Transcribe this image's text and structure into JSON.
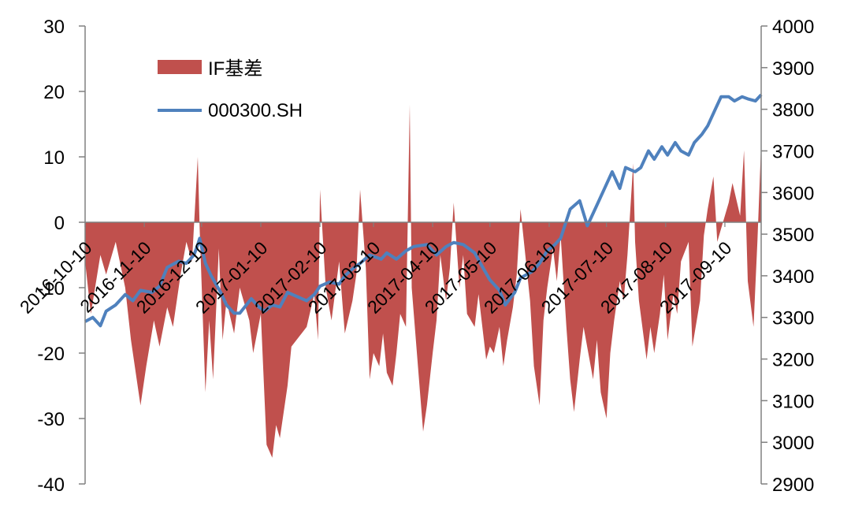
{
  "chart_data": {
    "type": "area+line",
    "x_tick_labels": [
      "2016-10-10",
      "2016-11-10",
      "2016-12-10",
      "2017-01-10",
      "2017-02-10",
      "2017-03-10",
      "2017-04-10",
      "2017-05-10",
      "2017-06-10",
      "2017-07-10",
      "2017-08-10",
      "2017-09-10"
    ],
    "y_left": {
      "ylim": [
        -40,
        30
      ],
      "ticks": [
        -40,
        -30,
        -20,
        -10,
        0,
        10,
        20,
        30
      ]
    },
    "y_right": {
      "ylim": [
        2900,
        4000
      ],
      "ticks": [
        2900,
        3000,
        3100,
        3200,
        3300,
        3400,
        3500,
        3600,
        3700,
        3800,
        3900,
        4000
      ]
    },
    "legend": {
      "position": "top-left"
    },
    "series": [
      {
        "name": "IF基差",
        "type": "area",
        "axis": "left",
        "color": "#C0504D",
        "points": [
          [
            "2016-10-10",
            -6
          ],
          [
            "2016-10-13",
            -14
          ],
          [
            "2016-10-18",
            -5
          ],
          [
            "2016-10-21",
            -8
          ],
          [
            "2016-10-26",
            -3
          ],
          [
            "2016-10-31",
            -10
          ],
          [
            "2016-11-03",
            -18
          ],
          [
            "2016-11-08",
            -28
          ],
          [
            "2016-11-11",
            -22
          ],
          [
            "2016-11-15",
            -15
          ],
          [
            "2016-11-18",
            -19
          ],
          [
            "2016-11-22",
            -13
          ],
          [
            "2016-11-25",
            -16
          ],
          [
            "2016-11-29",
            -8
          ],
          [
            "2016-12-02",
            -3
          ],
          [
            "2016-12-05",
            -6
          ],
          [
            "2016-12-08",
            10
          ],
          [
            "2016-12-09",
            -1
          ],
          [
            "2016-12-12",
            -26
          ],
          [
            "2016-12-14",
            -15
          ],
          [
            "2016-12-16",
            -24
          ],
          [
            "2016-12-19",
            -4
          ],
          [
            "2016-12-21",
            -18
          ],
          [
            "2016-12-23",
            -12
          ],
          [
            "2016-12-27",
            -17
          ],
          [
            "2016-12-30",
            -10
          ],
          [
            "2017-01-04",
            -15
          ],
          [
            "2017-01-06",
            -20
          ],
          [
            "2017-01-10",
            -14
          ],
          [
            "2017-01-13",
            -34
          ],
          [
            "2017-01-16",
            -36
          ],
          [
            "2017-01-18",
            -31
          ],
          [
            "2017-01-20",
            -33
          ],
          [
            "2017-01-24",
            -25
          ],
          [
            "2017-01-26",
            -19
          ],
          [
            "2017-02-03",
            -16
          ],
          [
            "2017-02-07",
            -11
          ],
          [
            "2017-02-09",
            -18
          ],
          [
            "2017-02-10",
            5
          ],
          [
            "2017-02-13",
            -10
          ],
          [
            "2017-02-16",
            -15
          ],
          [
            "2017-02-20",
            -6
          ],
          [
            "2017-02-23",
            -17
          ],
          [
            "2017-02-27",
            -12
          ],
          [
            "2017-03-01",
            -8
          ],
          [
            "2017-03-03",
            5
          ],
          [
            "2017-03-06",
            -7
          ],
          [
            "2017-03-08",
            -24
          ],
          [
            "2017-03-10",
            -20
          ],
          [
            "2017-03-13",
            -22
          ],
          [
            "2017-03-15",
            -17
          ],
          [
            "2017-03-17",
            -23
          ],
          [
            "2017-03-20",
            -25
          ],
          [
            "2017-03-22",
            -20
          ],
          [
            "2017-03-24",
            -14
          ],
          [
            "2017-03-27",
            -16
          ],
          [
            "2017-03-29",
            18
          ],
          [
            "2017-03-30",
            -10
          ],
          [
            "2017-04-05",
            -32
          ],
          [
            "2017-04-07",
            -28
          ],
          [
            "2017-04-10",
            -20
          ],
          [
            "2017-04-12",
            -15
          ],
          [
            "2017-04-14",
            -5
          ],
          [
            "2017-04-17",
            -12
          ],
          [
            "2017-04-19",
            -7
          ],
          [
            "2017-04-21",
            3
          ],
          [
            "2017-04-24",
            -10
          ],
          [
            "2017-04-26",
            -5
          ],
          [
            "2017-04-28",
            -14
          ],
          [
            "2017-05-02",
            -16
          ],
          [
            "2017-05-04",
            -11
          ],
          [
            "2017-05-08",
            -21
          ],
          [
            "2017-05-10",
            -19
          ],
          [
            "2017-05-12",
            -20
          ],
          [
            "2017-05-15",
            -16
          ],
          [
            "2017-05-17",
            -22
          ],
          [
            "2017-05-19",
            -18
          ],
          [
            "2017-05-22",
            -13
          ],
          [
            "2017-05-24",
            -8
          ],
          [
            "2017-05-26",
            2
          ],
          [
            "2017-05-31",
            -12
          ],
          [
            "2017-06-02",
            -22
          ],
          [
            "2017-06-05",
            -28
          ],
          [
            "2017-06-07",
            -15
          ],
          [
            "2017-06-09",
            -10
          ],
          [
            "2017-06-12",
            -4
          ],
          [
            "2017-06-14",
            -9
          ],
          [
            "2017-06-16",
            -2
          ],
          [
            "2017-06-19",
            -16
          ],
          [
            "2017-06-21",
            -24
          ],
          [
            "2017-06-23",
            -29
          ],
          [
            "2017-06-26",
            -21
          ],
          [
            "2017-06-28",
            -16
          ],
          [
            "2017-07-03",
            -24
          ],
          [
            "2017-07-05",
            -18
          ],
          [
            "2017-07-07",
            -26
          ],
          [
            "2017-07-10",
            -30
          ],
          [
            "2017-07-12",
            -20
          ],
          [
            "2017-07-14",
            -15
          ],
          [
            "2017-07-17",
            -9
          ],
          [
            "2017-07-19",
            -12
          ],
          [
            "2017-07-21",
            -5
          ],
          [
            "2017-07-24",
            9
          ],
          [
            "2017-07-25",
            -3
          ],
          [
            "2017-07-27",
            -12
          ],
          [
            "2017-07-31",
            -21
          ],
          [
            "2017-08-02",
            -16
          ],
          [
            "2017-08-04",
            -20
          ],
          [
            "2017-08-07",
            -14
          ],
          [
            "2017-08-09",
            -8
          ],
          [
            "2017-08-11",
            -18
          ],
          [
            "2017-08-14",
            -11
          ],
          [
            "2017-08-16",
            -14
          ],
          [
            "2017-08-18",
            -6
          ],
          [
            "2017-08-22",
            -3
          ],
          [
            "2017-08-24",
            -19
          ],
          [
            "2017-08-28",
            -12
          ],
          [
            "2017-08-30",
            -2
          ],
          [
            "2017-09-01",
            2
          ],
          [
            "2017-09-04",
            7
          ],
          [
            "2017-09-06",
            -3
          ],
          [
            "2017-09-08",
            -1
          ],
          [
            "2017-09-12",
            3
          ],
          [
            "2017-09-14",
            6
          ],
          [
            "2017-09-18",
            1
          ],
          [
            "2017-09-20",
            11
          ],
          [
            "2017-09-22",
            -9
          ],
          [
            "2017-09-25",
            -16
          ],
          [
            "2017-09-27",
            -3
          ],
          [
            "2017-09-29",
            12
          ]
        ]
      },
      {
        "name": "000300.SH",
        "type": "line",
        "axis": "right",
        "color": "#4F81BD",
        "points": [
          [
            "2016-10-10",
            3290
          ],
          [
            "2016-10-14",
            3300
          ],
          [
            "2016-10-18",
            3280
          ],
          [
            "2016-10-21",
            3315
          ],
          [
            "2016-10-26",
            3330
          ],
          [
            "2016-10-31",
            3355
          ],
          [
            "2016-11-04",
            3340
          ],
          [
            "2016-11-08",
            3365
          ],
          [
            "2016-11-14",
            3360
          ],
          [
            "2016-11-18",
            3375
          ],
          [
            "2016-11-22",
            3420
          ],
          [
            "2016-11-28",
            3435
          ],
          [
            "2016-12-02",
            3430
          ],
          [
            "2016-12-06",
            3450
          ],
          [
            "2016-12-08",
            3475
          ],
          [
            "2016-12-09",
            3490
          ],
          [
            "2016-12-12",
            3430
          ],
          [
            "2016-12-15",
            3400
          ],
          [
            "2016-12-20",
            3360
          ],
          [
            "2016-12-23",
            3330
          ],
          [
            "2016-12-27",
            3310
          ],
          [
            "2016-12-30",
            3310
          ],
          [
            "2017-01-05",
            3345
          ],
          [
            "2017-01-09",
            3325
          ],
          [
            "2017-01-12",
            3315
          ],
          [
            "2017-01-16",
            3330
          ],
          [
            "2017-01-20",
            3325
          ],
          [
            "2017-01-24",
            3360
          ],
          [
            "2017-02-03",
            3340
          ],
          [
            "2017-02-07",
            3355
          ],
          [
            "2017-02-10",
            3375
          ],
          [
            "2017-02-15",
            3385
          ],
          [
            "2017-02-20",
            3380
          ],
          [
            "2017-02-23",
            3400
          ],
          [
            "2017-02-28",
            3420
          ],
          [
            "2017-03-03",
            3430
          ],
          [
            "2017-03-08",
            3450
          ],
          [
            "2017-03-14",
            3440
          ],
          [
            "2017-03-17",
            3455
          ],
          [
            "2017-03-22",
            3440
          ],
          [
            "2017-03-27",
            3460
          ],
          [
            "2017-03-31",
            3470
          ],
          [
            "2017-04-07",
            3475
          ],
          [
            "2017-04-12",
            3450
          ],
          [
            "2017-04-17",
            3470
          ],
          [
            "2017-04-21",
            3480
          ],
          [
            "2017-04-26",
            3475
          ],
          [
            "2017-05-02",
            3455
          ],
          [
            "2017-05-05",
            3430
          ],
          [
            "2017-05-10",
            3390
          ],
          [
            "2017-05-15",
            3365
          ],
          [
            "2017-05-18",
            3330
          ],
          [
            "2017-05-23",
            3360
          ],
          [
            "2017-05-26",
            3395
          ],
          [
            "2017-06-01",
            3410
          ],
          [
            "2017-06-05",
            3430
          ],
          [
            "2017-06-09",
            3460
          ],
          [
            "2017-06-13",
            3475
          ],
          [
            "2017-06-16",
            3490
          ],
          [
            "2017-06-21",
            3560
          ],
          [
            "2017-06-26",
            3580
          ],
          [
            "2017-06-30",
            3520
          ],
          [
            "2017-07-05",
            3570
          ],
          [
            "2017-07-10",
            3620
          ],
          [
            "2017-07-13",
            3650
          ],
          [
            "2017-07-17",
            3610
          ],
          [
            "2017-07-20",
            3660
          ],
          [
            "2017-07-25",
            3650
          ],
          [
            "2017-07-28",
            3660
          ],
          [
            "2017-08-01",
            3700
          ],
          [
            "2017-08-04",
            3680
          ],
          [
            "2017-08-08",
            3710
          ],
          [
            "2017-08-11",
            3690
          ],
          [
            "2017-08-15",
            3720
          ],
          [
            "2017-08-18",
            3700
          ],
          [
            "2017-08-22",
            3690
          ],
          [
            "2017-08-25",
            3720
          ],
          [
            "2017-08-29",
            3740
          ],
          [
            "2017-09-01",
            3760
          ],
          [
            "2017-09-05",
            3800
          ],
          [
            "2017-09-08",
            3830
          ],
          [
            "2017-09-12",
            3830
          ],
          [
            "2017-09-15",
            3820
          ],
          [
            "2017-09-19",
            3830
          ],
          [
            "2017-09-22",
            3825
          ],
          [
            "2017-09-26",
            3820
          ],
          [
            "2017-09-29",
            3835
          ]
        ]
      }
    ]
  }
}
